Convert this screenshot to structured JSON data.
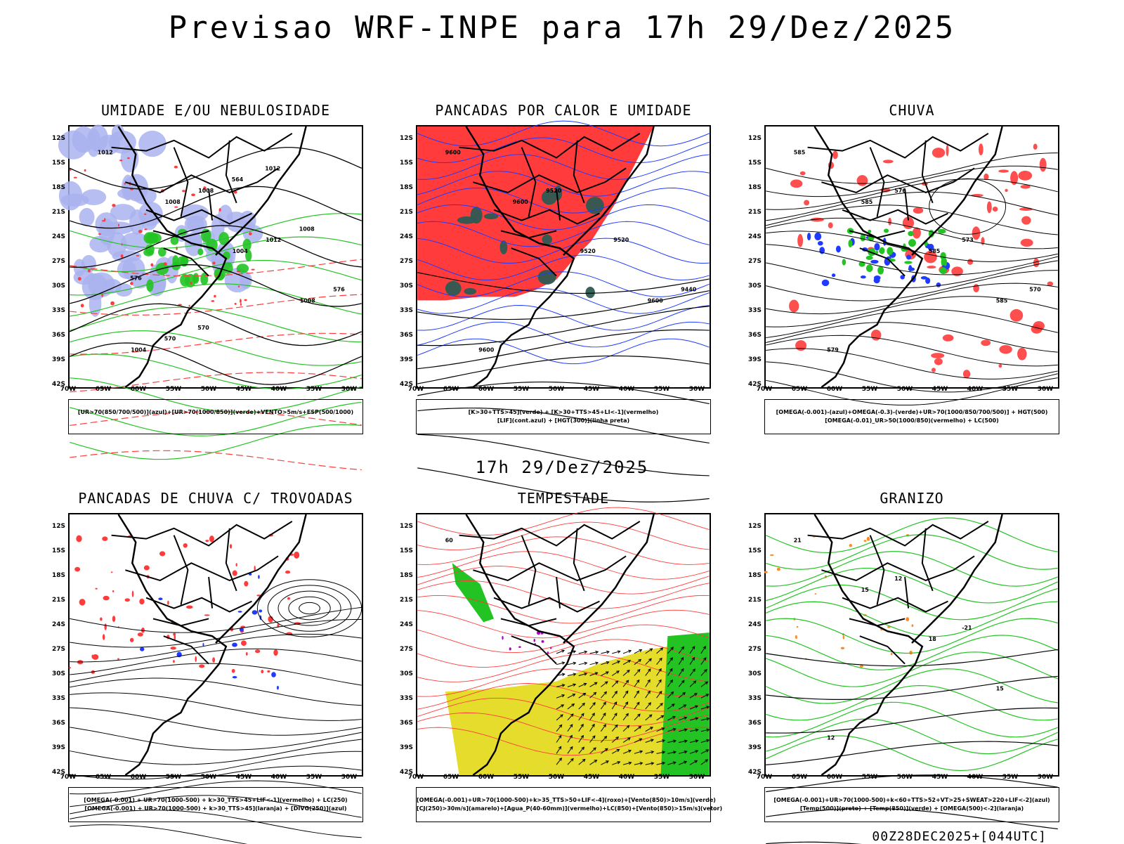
{
  "title": "Previsao WRF-INPE  para 17h 29/Dez/2025",
  "subtitle": "17h 29/Dez/2025",
  "footer": "00Z28DEC2025+[044UTC]",
  "axes": {
    "lat_labels": [
      "12S",
      "15S",
      "18S",
      "21S",
      "24S",
      "27S",
      "30S",
      "33S",
      "36S",
      "39S",
      "42S"
    ],
    "lon_labels": [
      "70W",
      "65W",
      "60W",
      "55W",
      "50W",
      "45W",
      "40W",
      "35W",
      "30W"
    ]
  },
  "panels": [
    {
      "title": "UMIDADE E/OU NEBULOSIDADE",
      "legend": [
        "[UR>70(850/700/500)](azul)+[UR>70(1000/850)](verde)+VENTO>5m/s+ESP(500/1000)"
      ],
      "contour_labels": [
        "1012",
        "1008",
        "1004",
        "1008",
        "1004",
        "1008",
        "1012",
        "576",
        "570",
        "564",
        "1008",
        "576",
        "570",
        "1012"
      ]
    },
    {
      "title": "PANCADAS POR CALOR E UMIDADE",
      "legend": [
        "[K>30+TTS>45](verde) + [K>30+TTS>45+LI<-1](vermelho)",
        "[LIF](cont.azul) + [HGT(300)](linha preta)"
      ],
      "contour_labels": [
        "9600",
        "9600",
        "9520",
        "9600",
        "9600",
        "9520",
        "9520",
        "9440"
      ]
    },
    {
      "title": "CHUVA",
      "legend": [
        "[OMEGA(-0.001)-(azul)+OMEGA(-0.3)-(verde)+UR>70(1000/850/700/500)] + HGT(500)",
        "[OMEGA(-0.01)_UR>50(1000/850)(vermelho) + LC(500)"
      ],
      "contour_labels": [
        "585",
        "585",
        "585",
        "585",
        "579",
        "576",
        "573",
        "570"
      ]
    },
    {
      "title": "PANCADAS DE CHUVA C/ TROVOADAS",
      "legend": [
        "[OMEGA(-0.001) + UR>70(1000-500) + k>30_TTS>45+LIF<-1](vermelho) + LC(250)",
        "[OMEGA(-0.001) + UR>70(1000-500) + k>30_TTS>45](laranja) + [DIVG(250)](azul)"
      ],
      "contour_labels": []
    },
    {
      "title": "TEMPESTADE",
      "legend": [
        "[OMEGA(-0.001)+UR>70(1000-500)+k>35_TTS>50+LIF<-4](roxo)+[Vento(850)>10m/s](verde)",
        "[CJ(250)>30m/s](amarelo)+[Agua_P(40-60mm)](vermelho)+LC(850)+[Vento(850)>15m/s](vetor)"
      ],
      "contour_labels": [
        "60"
      ]
    },
    {
      "title": "GRANIZO",
      "legend": [
        "[OMEGA(-0.001)+UR>70(1000-500)+k<60+TTS>52+VT>25+SWEAT>220+LIF<-2](azul)",
        "[Temp(500)](preto) + [Temp(850)](verde) + [OMEGA(500)<-2](laranja)"
      ],
      "contour_labels": [
        "21",
        "15",
        "18",
        "15",
        "12",
        "12",
        "-21"
      ]
    }
  ],
  "colors": {
    "red": "#ff3b3b",
    "green": "#22c322",
    "blue": "#1f3bff",
    "lavender": "#aab3ee",
    "darkteal": "#2e5a52",
    "yellow": "#e5dc2c",
    "orange": "#ff8a1f",
    "purple": "#b000c8"
  }
}
